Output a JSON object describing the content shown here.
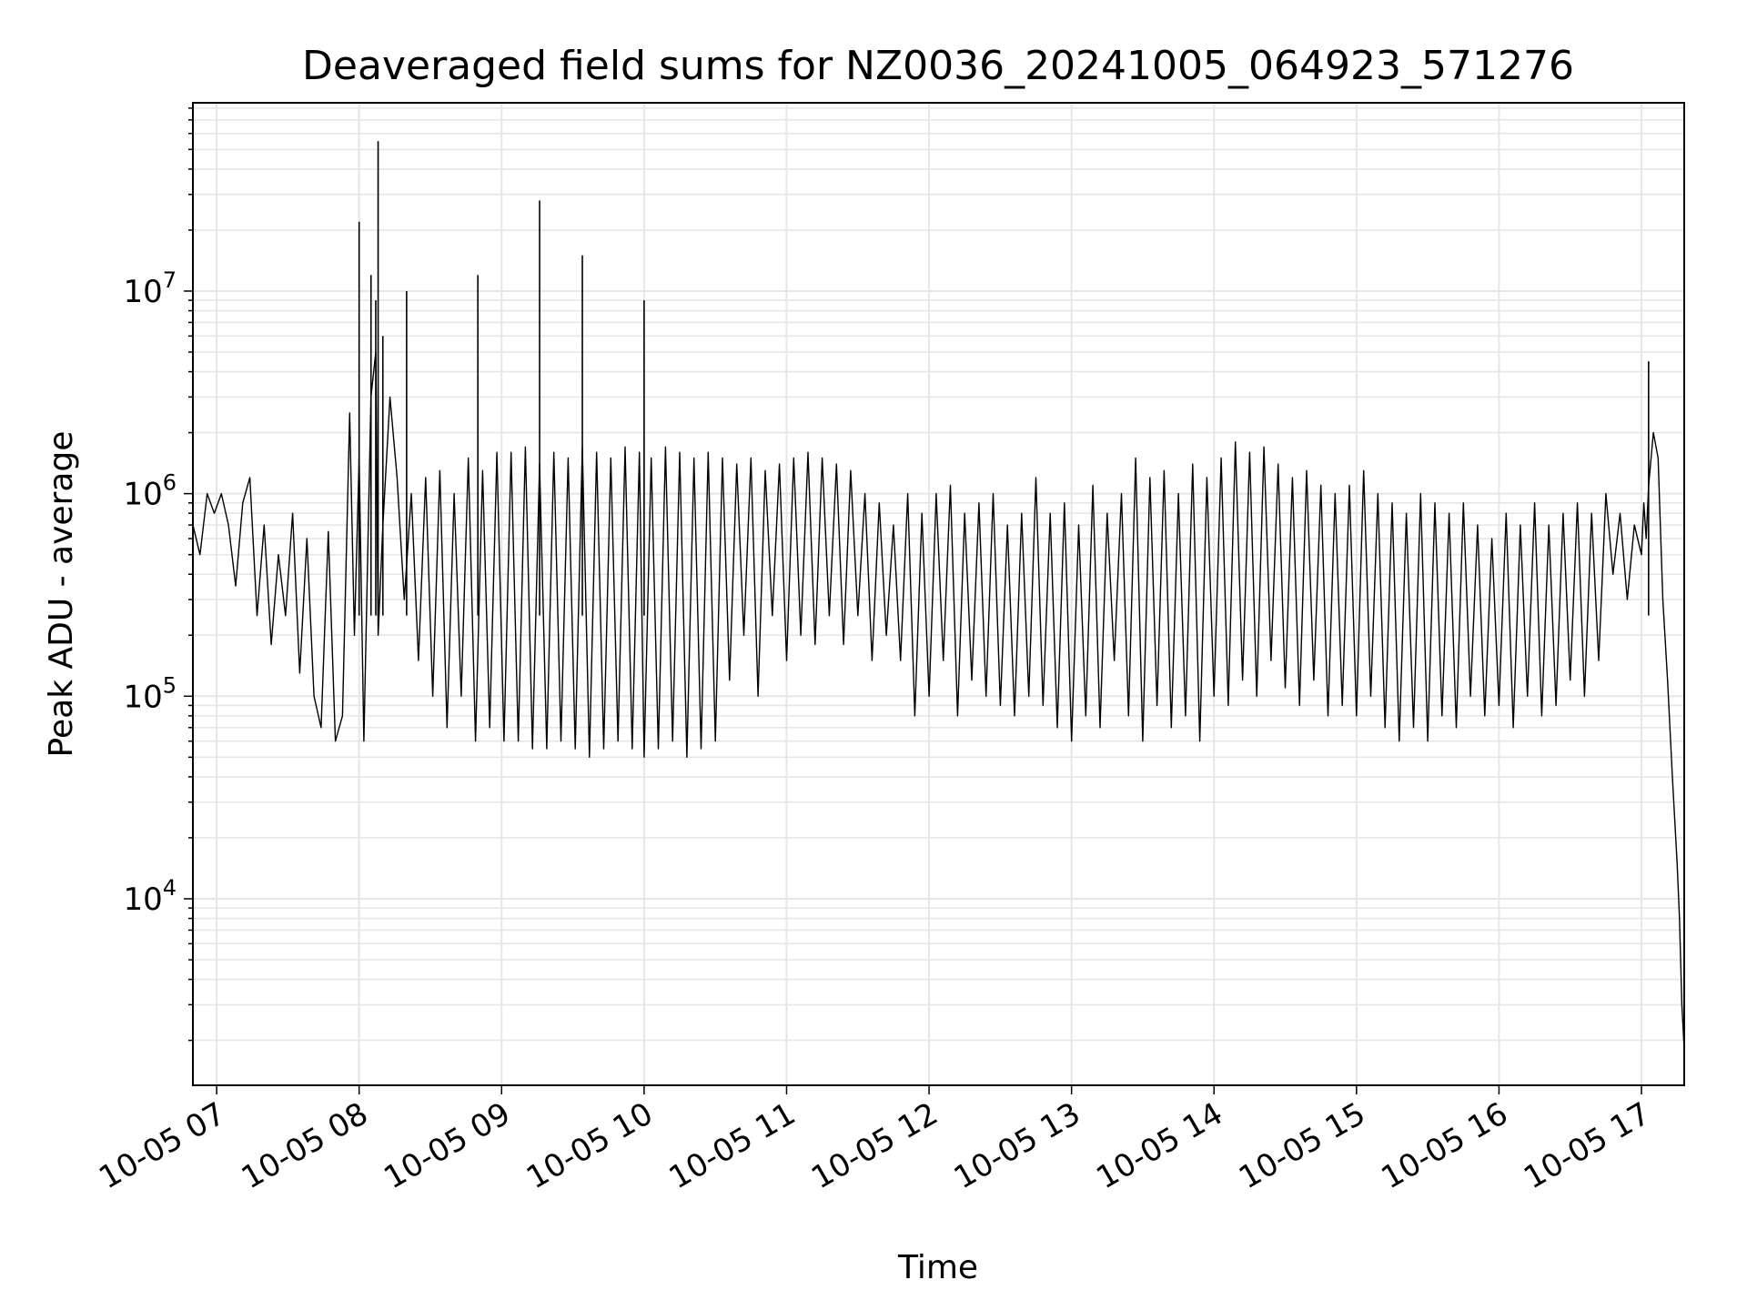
{
  "chart_data": {
    "type": "line",
    "title": "Deaveraged field sums for NZ0036_20241005_064923_571276",
    "xlabel": "Time",
    "ylabel": "Peak ADU - average",
    "y_scale": "log",
    "ylim": [
      1200,
      85000000
    ],
    "xlim": [
      "10-05 06:50",
      "10-05 17:18"
    ],
    "x_ticks": [
      "10-05 07",
      "10-05 08",
      "10-05 09",
      "10-05 10",
      "10-05 11",
      "10-05 12",
      "10-05 13",
      "10-05 14",
      "10-05 15",
      "10-05 16",
      "10-05 17"
    ],
    "y_ticks": [
      {
        "base": "10",
        "exp": "4",
        "value": 10000
      },
      {
        "base": "10",
        "exp": "5",
        "value": 100000
      },
      {
        "base": "10",
        "exp": "6",
        "value": 1000000
      },
      {
        "base": "10",
        "exp": "7",
        "value": 10000000
      }
    ],
    "grid": true,
    "line_color": "#000000",
    "series": [
      {
        "x": [
          "10-05 06:50",
          "10-05 06:53",
          "10-05 06:56",
          "10-05 06:59",
          "10-05 07:02",
          "10-05 07:05",
          "10-05 07:08",
          "10-05 07:11",
          "10-05 07:14",
          "10-05 07:17",
          "10-05 07:20",
          "10-05 07:23",
          "10-05 07:26",
          "10-05 07:29",
          "10-05 07:32",
          "10-05 07:35",
          "10-05 07:38",
          "10-05 07:41",
          "10-05 07:44",
          "10-05 07:47",
          "10-05 07:50",
          "10-05 07:53",
          "10-05 07:56",
          "10-05 07:58",
          "10-05 08:00",
          "10-05 08:02",
          "10-05 08:05",
          "10-05 08:07",
          "10-05 08:08",
          "10-05 08:10",
          "10-05 08:13",
          "10-05 08:16",
          "10-05 08:19",
          "10-05 08:22",
          "10-05 08:25",
          "10-05 08:28",
          "10-05 08:31",
          "10-05 08:34",
          "10-05 08:37",
          "10-05 08:40",
          "10-05 08:43",
          "10-05 08:46",
          "10-05 08:49",
          "10-05 08:52",
          "10-05 08:55",
          "10-05 08:58",
          "10-05 09:01",
          "10-05 09:04",
          "10-05 09:07",
          "10-05 09:10",
          "10-05 09:13",
          "10-05 09:16",
          "10-05 09:19",
          "10-05 09:22",
          "10-05 09:25",
          "10-05 09:28",
          "10-05 09:31",
          "10-05 09:34",
          "10-05 09:37",
          "10-05 09:40",
          "10-05 09:43",
          "10-05 09:46",
          "10-05 09:49",
          "10-05 09:52",
          "10-05 09:55",
          "10-05 09:58",
          "10-05 10:00",
          "10-05 10:03",
          "10-05 10:06",
          "10-05 10:09",
          "10-05 10:12",
          "10-05 10:15",
          "10-05 10:18",
          "10-05 10:21",
          "10-05 10:24",
          "10-05 10:27",
          "10-05 10:30",
          "10-05 10:33",
          "10-05 10:36",
          "10-05 10:39",
          "10-05 10:42",
          "10-05 10:45",
          "10-05 10:48",
          "10-05 10:51",
          "10-05 10:54",
          "10-05 10:57",
          "10-05 11:00",
          "10-05 11:03",
          "10-05 11:06",
          "10-05 11:09",
          "10-05 11:12",
          "10-05 11:15",
          "10-05 11:18",
          "10-05 11:21",
          "10-05 11:24",
          "10-05 11:27",
          "10-05 11:30",
          "10-05 11:33",
          "10-05 11:36",
          "10-05 11:39",
          "10-05 11:42",
          "10-05 11:45",
          "10-05 11:48",
          "10-05 11:51",
          "10-05 11:54",
          "10-05 11:57",
          "10-05 12:00",
          "10-05 12:03",
          "10-05 12:06",
          "10-05 12:09",
          "10-05 12:12",
          "10-05 12:15",
          "10-05 12:18",
          "10-05 12:21",
          "10-05 12:24",
          "10-05 12:27",
          "10-05 12:30",
          "10-05 12:33",
          "10-05 12:36",
          "10-05 12:39",
          "10-05 12:42",
          "10-05 12:45",
          "10-05 12:48",
          "10-05 12:51",
          "10-05 12:54",
          "10-05 12:57",
          "10-05 13:00",
          "10-05 13:03",
          "10-05 13:06",
          "10-05 13:09",
          "10-05 13:12",
          "10-05 13:15",
          "10-05 13:18",
          "10-05 13:21",
          "10-05 13:24",
          "10-05 13:27",
          "10-05 13:30",
          "10-05 13:33",
          "10-05 13:36",
          "10-05 13:39",
          "10-05 13:42",
          "10-05 13:45",
          "10-05 13:48",
          "10-05 13:51",
          "10-05 13:54",
          "10-05 13:57",
          "10-05 14:00",
          "10-05 14:03",
          "10-05 14:06",
          "10-05 14:09",
          "10-05 14:12",
          "10-05 14:15",
          "10-05 14:18",
          "10-05 14:21",
          "10-05 14:24",
          "10-05 14:27",
          "10-05 14:30",
          "10-05 14:33",
          "10-05 14:36",
          "10-05 14:39",
          "10-05 14:42",
          "10-05 14:45",
          "10-05 14:48",
          "10-05 14:51",
          "10-05 14:54",
          "10-05 14:57",
          "10-05 15:00",
          "10-05 15:03",
          "10-05 15:06",
          "10-05 15:09",
          "10-05 15:12",
          "10-05 15:15",
          "10-05 15:18",
          "10-05 15:21",
          "10-05 15:24",
          "10-05 15:27",
          "10-05 15:30",
          "10-05 15:33",
          "10-05 15:36",
          "10-05 15:39",
          "10-05 15:42",
          "10-05 15:45",
          "10-05 15:48",
          "10-05 15:51",
          "10-05 15:54",
          "10-05 15:57",
          "10-05 16:00",
          "10-05 16:03",
          "10-05 16:06",
          "10-05 16:09",
          "10-05 16:12",
          "10-05 16:15",
          "10-05 16:18",
          "10-05 16:21",
          "10-05 16:24",
          "10-05 16:27",
          "10-05 16:30",
          "10-05 16:33",
          "10-05 16:36",
          "10-05 16:39",
          "10-05 16:42",
          "10-05 16:45",
          "10-05 16:48",
          "10-05 16:51",
          "10-05 16:54",
          "10-05 16:57",
          "10-05 17:00",
          "10-05 17:01",
          "10-05 17:02",
          "10-05 17:03",
          "10-05 17:05",
          "10-05 17:07",
          "10-05 17:09",
          "10-05 17:11",
          "10-05 17:13",
          "10-05 17:15",
          "10-05 17:16",
          "10-05 17:17",
          "10-05 17:18"
        ],
        "values": [
          700000,
          500000,
          1000000,
          800000,
          1000000,
          700000,
          350000,
          900000,
          1200000,
          250000,
          700000,
          180000,
          500000,
          250000,
          800000,
          130000,
          600000,
          100000,
          70000,
          650000,
          60000,
          80000,
          2500000,
          200000,
          1500000,
          60000,
          3000000,
          5000000,
          200000,
          700000,
          3000000,
          1200000,
          300000,
          1000000,
          150000,
          1200000,
          100000,
          1300000,
          70000,
          1000000,
          100000,
          1500000,
          60000,
          1300000,
          70000,
          1600000,
          60000,
          1600000,
          60000,
          1700000,
          55000,
          1400000,
          55000,
          1600000,
          60000,
          1500000,
          55000,
          1700000,
          50000,
          1600000,
          55000,
          1500000,
          60000,
          1700000,
          55000,
          1600000,
          50000,
          1500000,
          55000,
          1700000,
          60000,
          1600000,
          50000,
          1500000,
          55000,
          1600000,
          60000,
          1500000,
          120000,
          1400000,
          200000,
          1500000,
          100000,
          1300000,
          250000,
          1400000,
          150000,
          1500000,
          200000,
          1600000,
          180000,
          1500000,
          250000,
          1400000,
          180000,
          1300000,
          250000,
          1000000,
          150000,
          900000,
          200000,
          700000,
          150000,
          1000000,
          80000,
          800000,
          100000,
          1000000,
          150000,
          1100000,
          80000,
          800000,
          120000,
          900000,
          100000,
          1000000,
          90000,
          700000,
          80000,
          800000,
          100000,
          1200000,
          90000,
          800000,
          70000,
          900000,
          60000,
          700000,
          80000,
          1100000,
          70000,
          800000,
          150000,
          1000000,
          80000,
          1500000,
          60000,
          1200000,
          90000,
          1300000,
          70000,
          1000000,
          80000,
          1400000,
          60000,
          1200000,
          100000,
          1500000,
          90000,
          1800000,
          120000,
          1600000,
          100000,
          1700000,
          150000,
          1400000,
          110000,
          1200000,
          90000,
          1300000,
          120000,
          1100000,
          80000,
          1000000,
          90000,
          1100000,
          80000,
          1300000,
          100000,
          1000000,
          70000,
          900000,
          60000,
          800000,
          70000,
          1000000,
          60000,
          900000,
          80000,
          800000,
          70000,
          900000,
          100000,
          700000,
          80000,
          600000,
          90000,
          800000,
          70000,
          700000,
          100000,
          900000,
          80000,
          700000,
          90000,
          800000,
          120000,
          900000,
          100000,
          800000,
          150000,
          1000000,
          400000,
          800000,
          300000,
          700000,
          500000,
          900000,
          600000,
          1100000,
          2000000,
          1500000,
          300000,
          120000,
          40000,
          15000,
          8000,
          3000,
          1800
        ]
      }
    ],
    "spikes": [
      {
        "x": "10-05 08:00",
        "value": 22000000
      },
      {
        "x": "10-05 08:05",
        "value": 12000000
      },
      {
        "x": "10-05 08:07",
        "value": 9000000
      },
      {
        "x": "10-05 08:08",
        "value": 55000000
      },
      {
        "x": "10-05 08:10",
        "value": 6000000
      },
      {
        "x": "10-05 08:20",
        "value": 10000000
      },
      {
        "x": "10-05 08:50",
        "value": 12000000
      },
      {
        "x": "10-05 09:16",
        "value": 28000000
      },
      {
        "x": "10-05 09:34",
        "value": 15000000
      },
      {
        "x": "10-05 10:00",
        "value": 9000000
      },
      {
        "x": "10-05 17:03",
        "value": 4500000
      }
    ]
  }
}
